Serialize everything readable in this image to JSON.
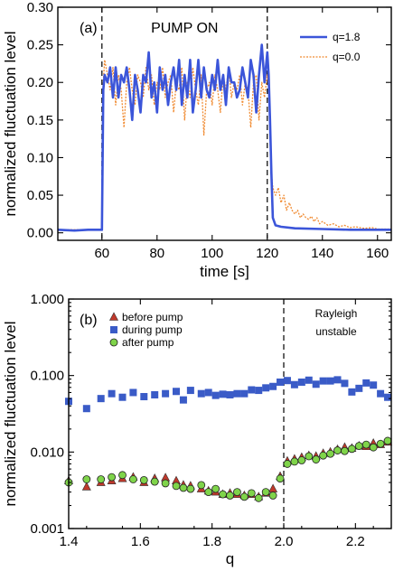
{
  "chart_data": [
    {
      "type": "line",
      "panel_label": "(a)",
      "annotation": "PUMP ON",
      "xlabel": "time [s]",
      "ylabel": "normalized fluctuation level",
      "xlim": [
        44,
        165
      ],
      "ylim": [
        -0.01,
        0.3
      ],
      "xticks": [
        "60",
        "80",
        "100",
        "120",
        "140",
        "160"
      ],
      "xtick_values": [
        60,
        80,
        100,
        120,
        140,
        160
      ],
      "yticks": [
        "0.00",
        "0.05",
        "0.10",
        "0.15",
        "0.20",
        "0.25",
        "0.30"
      ],
      "ytick_values": [
        0.0,
        0.05,
        0.1,
        0.15,
        0.2,
        0.25,
        0.3
      ],
      "vlines": [
        60,
        120
      ],
      "legend_position": "top-right",
      "series": [
        {
          "name": "q=1.8",
          "color": "#3b55d9",
          "style": "solid",
          "points": [
            [
              44,
              0.004
            ],
            [
              50,
              0.003
            ],
            [
              55,
              0.004
            ],
            [
              59.5,
              0.004
            ],
            [
              60,
              0.004
            ],
            [
              60.5,
              0.19
            ],
            [
              61,
              0.21
            ],
            [
              62,
              0.2
            ],
            [
              63,
              0.22
            ],
            [
              64,
              0.18
            ],
            [
              65,
              0.22
            ],
            [
              66,
              0.18
            ],
            [
              67,
              0.21
            ],
            [
              68,
              0.2
            ],
            [
              69,
              0.22
            ],
            [
              70,
              0.19
            ],
            [
              71,
              0.15
            ],
            [
              72,
              0.21
            ],
            [
              73,
              0.19
            ],
            [
              74,
              0.16
            ],
            [
              75,
              0.21
            ],
            [
              76,
              0.2
            ],
            [
              77,
              0.24
            ],
            [
              78,
              0.18
            ],
            [
              79,
              0.2
            ],
            [
              80,
              0.16
            ],
            [
              81,
              0.22
            ],
            [
              82,
              0.19
            ],
            [
              83,
              0.21
            ],
            [
              84,
              0.17
            ],
            [
              85,
              0.2
            ],
            [
              86,
              0.22
            ],
            [
              87,
              0.19
            ],
            [
              88,
              0.23
            ],
            [
              89,
              0.17
            ],
            [
              90,
              0.21
            ],
            [
              91,
              0.18
            ],
            [
              92,
              0.23
            ],
            [
              93,
              0.16
            ],
            [
              94,
              0.19
            ],
            [
              95,
              0.23
            ],
            [
              96,
              0.18
            ],
            [
              97,
              0.22
            ],
            [
              98,
              0.19
            ],
            [
              99,
              0.18
            ],
            [
              100,
              0.21
            ],
            [
              101,
              0.19
            ],
            [
              102,
              0.23
            ],
            [
              103,
              0.19
            ],
            [
              104,
              0.21
            ],
            [
              105,
              0.17
            ],
            [
              106,
              0.22
            ],
            [
              107,
              0.2
            ],
            [
              108,
              0.2
            ],
            [
              109,
              0.18
            ],
            [
              110,
              0.19
            ],
            [
              111,
              0.22
            ],
            [
              112,
              0.2
            ],
            [
              113,
              0.18
            ],
            [
              114,
              0.23
            ],
            [
              115,
              0.21
            ],
            [
              116,
              0.16
            ],
            [
              117,
              0.21
            ],
            [
              118,
              0.25
            ],
            [
              119,
              0.2
            ],
            [
              120,
              0.24
            ],
            [
              120.5,
              0.21
            ],
            [
              121,
              0.15
            ],
            [
              121.5,
              0.08
            ],
            [
              122,
              0.02
            ],
            [
              123,
              0.01
            ],
            [
              125,
              0.008
            ],
            [
              130,
              0.006
            ],
            [
              140,
              0.005
            ],
            [
              150,
              0.004
            ],
            [
              160,
              0.004
            ],
            [
              165,
              0.004
            ]
          ]
        },
        {
          "name": "q=0.0",
          "color": "#f08a30",
          "style": "dotted",
          "points": [
            [
              44,
              0.004
            ],
            [
              50,
              0.004
            ],
            [
              55,
              0.004
            ],
            [
              59.5,
              0.004
            ],
            [
              60,
              0.004
            ],
            [
              60.5,
              0.2
            ],
            [
              61,
              0.23
            ],
            [
              62,
              0.21
            ],
            [
              63,
              0.19
            ],
            [
              64,
              0.22
            ],
            [
              65,
              0.17
            ],
            [
              66,
              0.21
            ],
            [
              67,
              0.19
            ],
            [
              68,
              0.14
            ],
            [
              69,
              0.2
            ],
            [
              70,
              0.22
            ],
            [
              71,
              0.19
            ],
            [
              72,
              0.17
            ],
            [
              73,
              0.21
            ],
            [
              74,
              0.2
            ],
            [
              75,
              0.18
            ],
            [
              76,
              0.22
            ],
            [
              77,
              0.19
            ],
            [
              78,
              0.21
            ],
            [
              79,
              0.17
            ],
            [
              80,
              0.2
            ],
            [
              81,
              0.19
            ],
            [
              82,
              0.22
            ],
            [
              83,
              0.18
            ],
            [
              84,
              0.2
            ],
            [
              85,
              0.21
            ],
            [
              86,
              0.16
            ],
            [
              87,
              0.2
            ],
            [
              88,
              0.19
            ],
            [
              89,
              0.22
            ],
            [
              90,
              0.15
            ],
            [
              91,
              0.2
            ],
            [
              92,
              0.18
            ],
            [
              93,
              0.22
            ],
            [
              94,
              0.19
            ],
            [
              95,
              0.17
            ],
            [
              96,
              0.21
            ],
            [
              97,
              0.13
            ],
            [
              98,
              0.19
            ],
            [
              99,
              0.2
            ],
            [
              100,
              0.17
            ],
            [
              101,
              0.21
            ],
            [
              102,
              0.19
            ],
            [
              103,
              0.16
            ],
            [
              104,
              0.21
            ],
            [
              105,
              0.19
            ],
            [
              106,
              0.22
            ],
            [
              107,
              0.18
            ],
            [
              108,
              0.2
            ],
            [
              109,
              0.19
            ],
            [
              110,
              0.21
            ],
            [
              111,
              0.17
            ],
            [
              112,
              0.2
            ],
            [
              113,
              0.19
            ],
            [
              114,
              0.14
            ],
            [
              115,
              0.2
            ],
            [
              116,
              0.21
            ],
            [
              117,
              0.15
            ],
            [
              118,
              0.2
            ],
            [
              119,
              0.18
            ],
            [
              120,
              0.21
            ],
            [
              120.5,
              0.19
            ],
            [
              121,
              0.14
            ],
            [
              121.5,
              0.08
            ],
            [
              122,
              0.06
            ],
            [
              123,
              0.05
            ],
            [
              124,
              0.06
            ],
            [
              125,
              0.04
            ],
            [
              126,
              0.05
            ],
            [
              127,
              0.03
            ],
            [
              128,
              0.04
            ],
            [
              129,
              0.03
            ],
            [
              130,
              0.025
            ],
            [
              131,
              0.03
            ],
            [
              132,
              0.02
            ],
            [
              133,
              0.025
            ],
            [
              134,
              0.02
            ],
            [
              135,
              0.018
            ],
            [
              136,
              0.022
            ],
            [
              137,
              0.015
            ],
            [
              138,
              0.02
            ],
            [
              139,
              0.012
            ],
            [
              140,
              0.015
            ],
            [
              142,
              0.01
            ],
            [
              144,
              0.012
            ],
            [
              146,
              0.008
            ],
            [
              148,
              0.01
            ],
            [
              150,
              0.007
            ],
            [
              152,
              0.008
            ],
            [
              155,
              0.006
            ],
            [
              158,
              0.007
            ],
            [
              160,
              0.005
            ],
            [
              165,
              0.005
            ]
          ]
        }
      ]
    },
    {
      "type": "scatter",
      "panel_label": "(b)",
      "annotation_lines": [
        "Rayleigh",
        "unstable"
      ],
      "xlabel": "q",
      "ylabel": "normalized fluctuation level",
      "xlim": [
        1.4,
        2.3
      ],
      "ylim": [
        0.001,
        1.0
      ],
      "yscale": "log",
      "xticks": [
        "1.4",
        "1.6",
        "1.8",
        "2.0",
        "2.2"
      ],
      "xtick_values": [
        1.4,
        1.6,
        1.8,
        2.0,
        2.2
      ],
      "yticks": [
        "0.001",
        "0.010",
        "0.100",
        "1.000"
      ],
      "ytick_values": [
        0.001,
        0.01,
        0.1,
        1.0
      ],
      "vlines": [
        2.0
      ],
      "legend_position": "top-left",
      "x": [
        1.4,
        1.45,
        1.49,
        1.52,
        1.55,
        1.58,
        1.61,
        1.64,
        1.67,
        1.7,
        1.72,
        1.74,
        1.77,
        1.79,
        1.81,
        1.83,
        1.85,
        1.87,
        1.89,
        1.91,
        1.93,
        1.95,
        1.97,
        1.99,
        2.01,
        2.03,
        2.05,
        2.07,
        2.09,
        2.11,
        2.13,
        2.15,
        2.17,
        2.19,
        2.21,
        2.23,
        2.25,
        2.27,
        2.29
      ],
      "series": [
        {
          "name": "before pump",
          "marker": "triangle",
          "color": "#c0392b",
          "values": [
            0.0042,
            0.0035,
            0.004,
            0.0042,
            0.0045,
            0.0047,
            0.004,
            0.0045,
            0.0046,
            0.0042,
            0.0037,
            0.0036,
            0.0033,
            0.0031,
            0.003,
            0.0028,
            0.0029,
            0.0028,
            0.0027,
            0.0028,
            0.0026,
            0.0029,
            0.0033,
            0.0048,
            0.0076,
            0.0081,
            0.0085,
            0.009,
            0.0088,
            0.0096,
            0.01,
            0.0108,
            0.0115,
            0.0112,
            0.012,
            0.0118,
            0.013,
            0.0125,
            0.0135
          ]
        },
        {
          "name": "during pump",
          "marker": "square",
          "color": "#3a5bc7",
          "values": [
            0.046,
            0.037,
            0.05,
            0.058,
            0.052,
            0.06,
            0.053,
            0.056,
            0.058,
            0.062,
            0.048,
            0.064,
            0.058,
            0.06,
            0.055,
            0.057,
            0.056,
            0.058,
            0.058,
            0.065,
            0.064,
            0.069,
            0.072,
            0.082,
            0.086,
            0.076,
            0.082,
            0.087,
            0.077,
            0.085,
            0.085,
            0.088,
            0.079,
            0.061,
            0.068,
            0.08,
            0.075,
            0.058,
            0.052
          ]
        },
        {
          "name": "after pump",
          "marker": "circle",
          "color": "#7fd44a",
          "values": [
            0.004,
            0.0044,
            0.0044,
            0.0047,
            0.005,
            0.0044,
            0.0043,
            0.0041,
            0.0039,
            0.0036,
            0.0034,
            0.0033,
            0.0037,
            0.003,
            0.0033,
            0.0028,
            0.0027,
            0.003,
            0.0026,
            0.0029,
            0.0025,
            0.003,
            0.0027,
            0.0045,
            0.007,
            0.0075,
            0.0078,
            0.0088,
            0.008,
            0.009,
            0.0095,
            0.0105,
            0.0103,
            0.011,
            0.012,
            0.0125,
            0.0115,
            0.0128,
            0.014
          ]
        }
      ]
    }
  ]
}
